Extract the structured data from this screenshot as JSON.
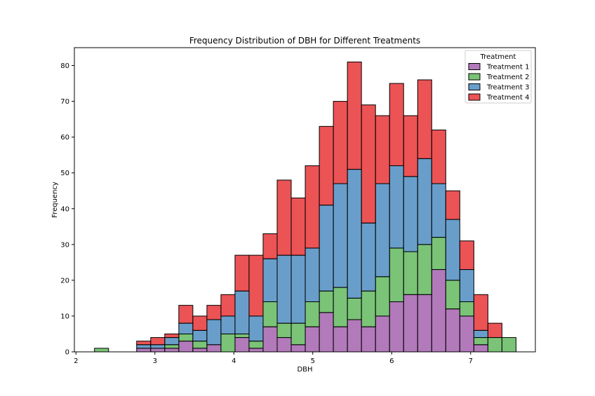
{
  "chart_data": {
    "type": "bar",
    "stacked": true,
    "title": "Frequency Distribution of DBH for Different Treatments",
    "xlabel": "DBH",
    "ylabel": "Frequency",
    "xlim": [
      1.98,
      7.82
    ],
    "ylim": [
      0,
      85
    ],
    "xticks": [
      2,
      3,
      4,
      5,
      6,
      7
    ],
    "yticks": [
      0,
      10,
      20,
      30,
      40,
      50,
      60,
      70,
      80
    ],
    "grid": false,
    "bin_width": 0.178,
    "bin_starts": [
      2.235,
      2.413,
      2.591,
      2.769,
      2.947,
      3.125,
      3.303,
      3.481,
      3.659,
      3.837,
      4.015,
      4.193,
      4.371,
      4.549,
      4.727,
      4.905,
      5.083,
      5.261,
      5.439,
      5.617,
      5.795,
      5.973,
      6.151,
      6.329,
      6.507,
      6.685,
      6.863,
      7.041,
      7.219,
      7.397
    ],
    "legend": {
      "title": "Treatment",
      "position": "upper right"
    },
    "series": [
      {
        "name": "Treatment 1",
        "color": "#984ea3",
        "values": [
          0,
          0,
          0,
          1,
          1,
          1,
          3,
          1,
          2,
          0,
          4,
          1,
          7,
          4,
          2,
          7,
          11,
          7,
          9,
          7,
          10,
          14,
          16,
          16,
          23,
          12,
          10,
          2,
          0,
          0
        ]
      },
      {
        "name": "Treatment 2",
        "color": "#4daf4a",
        "values": [
          1,
          0,
          0,
          0,
          0,
          1,
          2,
          2,
          0,
          5,
          1,
          2,
          7,
          4,
          6,
          7,
          6,
          11,
          6,
          10,
          11,
          15,
          12,
          14,
          9,
          8,
          4,
          2,
          4,
          4
        ]
      },
      {
        "name": "Treatment 3",
        "color": "#377eb8",
        "values": [
          0,
          0,
          0,
          1,
          1,
          2,
          3,
          3,
          7,
          5,
          12,
          7,
          12,
          19,
          19,
          15,
          24,
          29,
          36,
          19,
          26,
          23,
          21,
          24,
          15,
          17,
          9,
          2,
          0,
          0
        ]
      },
      {
        "name": "Treatment 4",
        "color": "#e41a1c",
        "values": [
          0,
          0,
          0,
          1,
          2,
          1,
          5,
          4,
          4,
          6,
          10,
          17,
          7,
          21,
          16,
          23,
          22,
          23,
          30,
          33,
          19,
          23,
          17,
          22,
          15,
          8,
          8,
          10,
          4,
          0
        ]
      }
    ]
  }
}
